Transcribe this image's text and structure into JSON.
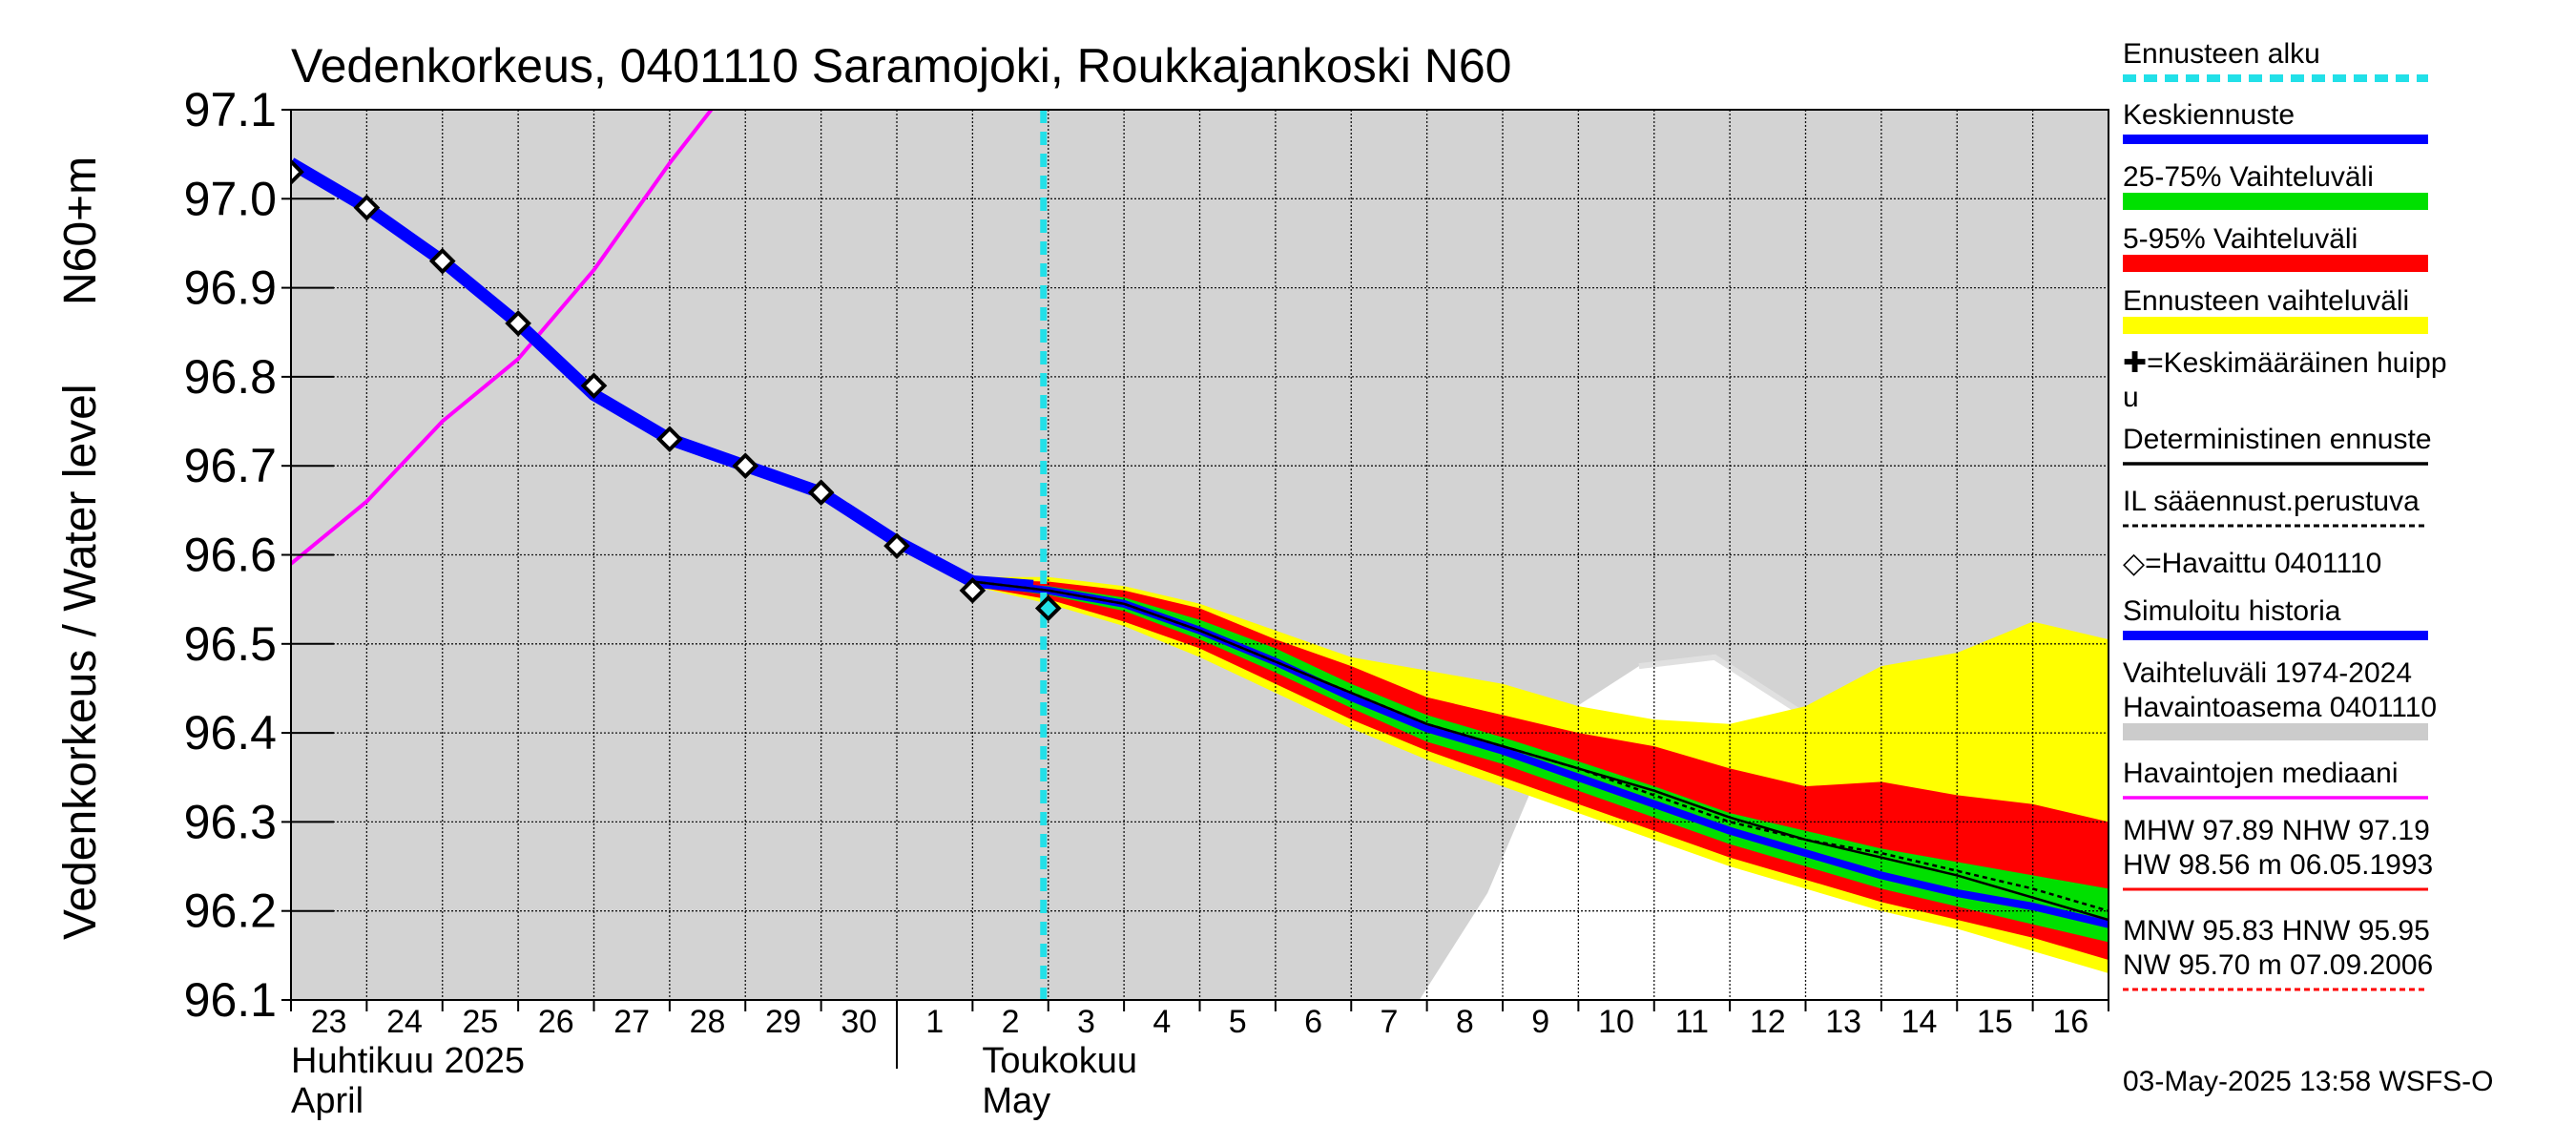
{
  "chart_data": {
    "type": "line",
    "title": "Vedenkorkeus, 0401110 Saramojoki, Roukkajankoski N60",
    "ylabel": "Vedenkorkeus / Water level",
    "ylabel_unit": "N60+m",
    "ylim": [
      96.1,
      97.1
    ],
    "yticks": [
      "96.1",
      "96.2",
      "96.3",
      "96.4",
      "96.5",
      "96.6",
      "96.7",
      "96.8",
      "96.9",
      "97.0",
      "97.1"
    ],
    "x_start": "2025-04-23",
    "x_end": "2025-05-17",
    "x_day_labels": [
      "23",
      "24",
      "25",
      "26",
      "27",
      "28",
      "29",
      "30",
      "1",
      "2",
      "3",
      "4",
      "5",
      "6",
      "7",
      "8",
      "9",
      "10",
      "11",
      "12",
      "13",
      "14",
      "15",
      "16"
    ],
    "month_labels": [
      {
        "fi": "Huhtikuu  2025",
        "en": "April",
        "date": "2025-04-23"
      },
      {
        "fi": "Toukokuu",
        "en": "May",
        "date": "2025-05-02"
      }
    ],
    "forecast_start": "2025-05-03 14:00",
    "grid": true,
    "legend_position": "right",
    "legend": [
      {
        "label": "Ennusteen alku",
        "color": "#22e0e8",
        "style": "dashed"
      },
      {
        "label": "Keskiennuste",
        "color": "#0000ff",
        "style": "solid"
      },
      {
        "label": "25-75% Vaihteluväli",
        "color": "#00e000",
        "style": "band"
      },
      {
        "label": "5-95% Vaihteluväli",
        "color": "#ff0000",
        "style": "band"
      },
      {
        "label": "Ennusteen vaihteluväli",
        "color": "#ffff00",
        "style": "band"
      },
      {
        "label": "✚=Keskimääräinen huippu",
        "color": "#000000",
        "style": "marker"
      },
      {
        "label": "Deterministinen ennuste",
        "color": "#000000",
        "style": "solid"
      },
      {
        "label": "IL sääennust.perustuva",
        "color": "#000000",
        "style": "dotted"
      },
      {
        "label": "◇=Havaittu 0401110",
        "color": "#000000",
        "style": "marker"
      },
      {
        "label": "Simuloitu historia",
        "color": "#0000ff",
        "style": "solid"
      },
      {
        "label": "Vaihteluväli 1974-2024\n Havaintoasema 0401110",
        "color": "#cccccc",
        "style": "band"
      },
      {
        "label": "Havaintojen mediaani",
        "color": "#ff00ff",
        "style": "solid"
      }
    ],
    "stats": [
      {
        "line1": "MHW  97.89 NHW  97.19",
        "line2": "HW  98.56 m 06.05.1993",
        "color": "#ff0000",
        "style": "solid"
      },
      {
        "line1": "MNW  95.83 HNW  95.95",
        "line2": "NW  95.70 m 07.09.2006",
        "color": "#ff0000",
        "style": "dashed"
      }
    ],
    "footer": "03-May-2025 13:58 WSFS-O",
    "colors": {
      "history_band": "#d3d3d3",
      "forecast_range": "#ffff00",
      "p5_95": "#ff0000",
      "p25_75": "#00e000",
      "mean": "#0000ff",
      "median_obs": "#ff00ff",
      "band_top_line": "#e0e0e0",
      "forecast_start": "#22e0e8"
    },
    "series": {
      "observed": [
        [
          0.0,
          97.03
        ],
        [
          1.0,
          96.99
        ],
        [
          2.0,
          96.93
        ],
        [
          3.0,
          96.86
        ],
        [
          4.0,
          96.79
        ],
        [
          5.0,
          96.73
        ],
        [
          6.0,
          96.7
        ],
        [
          7.0,
          96.67
        ],
        [
          8.0,
          96.61
        ],
        [
          9.0,
          96.56
        ],
        [
          10.0,
          96.54
        ]
      ],
      "simulated_history": [
        [
          0.0,
          97.04
        ],
        [
          1.0,
          96.99
        ],
        [
          2.0,
          96.93
        ],
        [
          3.0,
          96.86
        ],
        [
          4.0,
          96.78
        ],
        [
          5.0,
          96.73
        ],
        [
          6.0,
          96.7
        ],
        [
          7.0,
          96.67
        ],
        [
          8.0,
          96.615
        ],
        [
          9.0,
          96.57
        ],
        [
          9.8,
          96.565
        ]
      ],
      "median_observed": [
        [
          0.0,
          96.59
        ],
        [
          1.0,
          96.66
        ],
        [
          2.0,
          96.75
        ],
        [
          3.0,
          96.82
        ],
        [
          4.0,
          96.92
        ],
        [
          5.0,
          97.04
        ],
        [
          5.55,
          97.1
        ]
      ],
      "mean_forecast": [
        [
          9.0,
          96.57
        ],
        [
          10.0,
          96.56
        ],
        [
          11.0,
          96.545
        ],
        [
          12.0,
          96.515
        ],
        [
          13.0,
          96.48
        ],
        [
          14.0,
          96.44
        ],
        [
          15.0,
          96.405
        ],
        [
          16.0,
          96.38
        ],
        [
          17.0,
          96.35
        ],
        [
          18.0,
          96.32
        ],
        [
          19.0,
          96.29
        ],
        [
          20.0,
          96.265
        ],
        [
          21.0,
          96.24
        ],
        [
          22.0,
          96.22
        ],
        [
          23.0,
          96.205
        ],
        [
          24.0,
          96.185
        ]
      ],
      "deterministic": [
        [
          9.0,
          96.57
        ],
        [
          10.0,
          96.56
        ],
        [
          11.0,
          96.545
        ],
        [
          12.0,
          96.515
        ],
        [
          13.0,
          96.48
        ],
        [
          14.0,
          96.445
        ],
        [
          15.0,
          96.41
        ],
        [
          16.0,
          96.385
        ],
        [
          17.0,
          96.36
        ],
        [
          18.0,
          96.335
        ],
        [
          19.0,
          96.305
        ],
        [
          20.0,
          96.28
        ],
        [
          21.0,
          96.26
        ],
        [
          22.0,
          96.24
        ],
        [
          23.0,
          96.215
        ],
        [
          24.0,
          96.19
        ]
      ],
      "il_weather": [
        [
          9.0,
          96.57
        ],
        [
          10.0,
          96.56
        ],
        [
          11.0,
          96.545
        ],
        [
          12.0,
          96.515
        ],
        [
          13.0,
          96.48
        ],
        [
          14.0,
          96.445
        ],
        [
          15.0,
          96.41
        ],
        [
          16.0,
          96.385
        ],
        [
          17.0,
          96.36
        ],
        [
          18.0,
          96.33
        ],
        [
          19.0,
          96.3
        ],
        [
          20.0,
          96.28
        ],
        [
          21.0,
          96.265
        ],
        [
          22.0,
          96.245
        ],
        [
          23.0,
          96.225
        ],
        [
          24.0,
          96.2
        ]
      ],
      "forecast_range": {
        "x": [
          9.0,
          10.0,
          11.0,
          12.0,
          13.0,
          14.0,
          15.0,
          16.0,
          17.0,
          18.0,
          19.0,
          20.0,
          21.0,
          22.0,
          23.0,
          24.0
        ],
        "upper": [
          96.575,
          96.575,
          96.565,
          96.545,
          96.515,
          96.485,
          96.47,
          96.455,
          96.43,
          96.415,
          96.41,
          96.43,
          96.475,
          96.49,
          96.525,
          96.505
        ],
        "lower": [
          96.565,
          96.545,
          96.52,
          96.485,
          96.445,
          96.405,
          96.37,
          96.34,
          96.31,
          96.28,
          96.25,
          96.225,
          96.2,
          96.18,
          96.155,
          96.13
        ]
      },
      "p5_95": {
        "x": [
          9.0,
          10.0,
          11.0,
          12.0,
          13.0,
          14.0,
          15.0,
          16.0,
          17.0,
          18.0,
          19.0,
          20.0,
          21.0,
          22.0,
          23.0,
          24.0
        ],
        "upper": [
          96.572,
          96.57,
          96.56,
          96.54,
          96.505,
          96.475,
          96.44,
          96.42,
          96.4,
          96.385,
          96.36,
          96.34,
          96.345,
          96.33,
          96.32,
          96.3
        ],
        "lower": [
          96.565,
          96.55,
          96.525,
          96.495,
          96.455,
          96.415,
          96.38,
          96.35,
          96.32,
          96.29,
          96.26,
          96.235,
          96.21,
          96.19,
          96.17,
          96.145
        ]
      },
      "p25_75": {
        "x": [
          9.0,
          10.0,
          11.0,
          12.0,
          13.0,
          14.0,
          15.0,
          16.0,
          17.0,
          18.0,
          19.0,
          20.0,
          21.0,
          22.0,
          23.0,
          24.0
        ],
        "upper": [
          96.57,
          96.565,
          96.552,
          96.527,
          96.495,
          96.455,
          96.42,
          96.395,
          96.368,
          96.34,
          96.31,
          96.29,
          96.27,
          96.255,
          96.24,
          96.225
        ],
        "lower": [
          96.566,
          96.555,
          96.537,
          96.505,
          96.468,
          96.428,
          96.39,
          96.365,
          96.335,
          96.305,
          96.275,
          96.25,
          96.225,
          96.205,
          96.185,
          96.165
        ]
      },
      "history_band": {
        "x": [
          0.0,
          14.0,
          14.9,
          15.8,
          16.8,
          17.8,
          18.8,
          19.9,
          20.9,
          21.9,
          22.9,
          23.9,
          24.0
        ],
        "upper": [
          97.1,
          97.1,
          97.1,
          97.1,
          97.1,
          97.1,
          97.1,
          97.1,
          97.1,
          97.1,
          97.1,
          97.1,
          97.1
        ],
        "lower": [
          96.1,
          96.1,
          96.1,
          96.22,
          96.42,
          96.475,
          96.485,
          96.425,
          96.39,
          96.35,
          96.32,
          96.3,
          96.28
        ]
      }
    }
  }
}
